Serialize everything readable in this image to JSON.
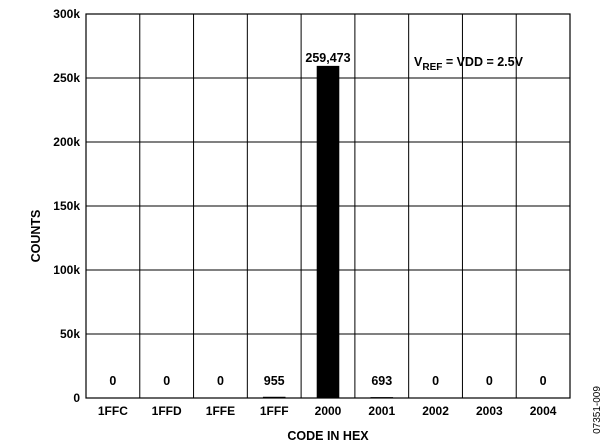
{
  "chart_data": {
    "type": "bar",
    "categories": [
      "1FFC",
      "1FFD",
      "1FFE",
      "1FFF",
      "2000",
      "2001",
      "2002",
      "2003",
      "2004"
    ],
    "values": [
      0,
      0,
      0,
      955,
      259473,
      693,
      0,
      0,
      0
    ],
    "data_labels": [
      "0",
      "0",
      "0",
      "955",
      "259,473",
      "693",
      "0",
      "0",
      "0"
    ],
    "xlabel": "CODE IN HEX",
    "ylabel": "COUNTS",
    "ylim": [
      0,
      300000
    ],
    "yticks": [
      0,
      50000,
      100000,
      150000,
      200000,
      250000,
      300000
    ],
    "ytick_labels": [
      "0",
      "50k",
      "100k",
      "150k",
      "200k",
      "250k",
      "300k"
    ],
    "grid": true,
    "bar_color": "#000000",
    "annotation": {
      "prefix": "V",
      "subscript": "REF",
      "suffix": " = VDD = 2.5V"
    },
    "figure_id": "07351-009"
  }
}
